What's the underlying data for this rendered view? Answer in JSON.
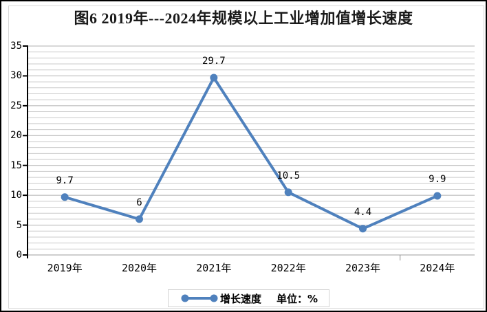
{
  "title": "图6  2019年---2024年规模以上工业增加值增长速度",
  "legend": {
    "series_label": "增长速度",
    "unit_label": "单位：%"
  },
  "colors": {
    "line": "#4f81bd",
    "marker": "#4f81bd",
    "grid_minor": "#c9c9c9",
    "grid_major": "#b0b0b0",
    "zero_line": "#9e9e9e",
    "axis": "#000000",
    "x_tick": "#8c8c8c",
    "text": "#000000",
    "outer_border": "#000000",
    "inner_border": "#d9d9d9",
    "legend_border": "#d3d3d3",
    "background": "#ffffff"
  },
  "chart_data": {
    "type": "line",
    "title": "图6  2019年---2024年规模以上工业增加值增长速度",
    "categories": [
      "2019年",
      "2020年",
      "2021年",
      "2022年",
      "2023年",
      "2024年"
    ],
    "series": [
      {
        "name": "增长速度",
        "values": [
          9.7,
          6,
          29.7,
          10.5,
          4.4,
          9.9
        ]
      }
    ],
    "data_labels": [
      "9.7",
      "6",
      "29.7",
      "10.5",
      "4.4",
      "9.9"
    ],
    "unit": "%",
    "xlabel": "",
    "ylabel": "",
    "ylim": [
      0,
      35
    ],
    "y_major_step": 5,
    "y_minor_step": 1,
    "y_tick_labels": [
      "0",
      "5",
      "10",
      "15",
      "20",
      "25",
      "30",
      "35"
    ],
    "grid": "on",
    "legend_position": "bottom"
  }
}
